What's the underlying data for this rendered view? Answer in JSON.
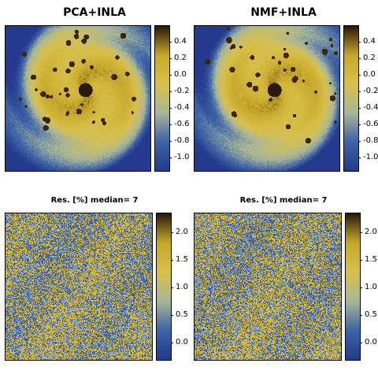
{
  "chart_data": [
    {
      "type": "heatmap",
      "title": "PCA+INLA",
      "colorbar": {
        "range": [
          -1.15,
          0.6
        ],
        "ticks": [
          "0.4",
          "0.2",
          "0.0",
          "-0.2",
          "-0.4",
          "-0.6",
          "-0.8",
          "-1.0"
        ]
      },
      "content": "spiral-field"
    },
    {
      "type": "heatmap",
      "title": "NMF+INLA",
      "colorbar": {
        "range": [
          -1.15,
          0.6
        ],
        "ticks": [
          "0.4",
          "0.2",
          "0.0",
          "-0.2",
          "-0.4",
          "-0.6",
          "-0.8",
          "-1.0"
        ]
      },
      "content": "spiral-field"
    },
    {
      "type": "heatmap",
      "title": "Res. [%]  median= 7",
      "colorbar": {
        "range": [
          -0.3,
          2.35
        ],
        "ticks": [
          "2.0",
          "1.5",
          "1.0",
          "0.5",
          "0.0"
        ]
      },
      "content": "residual-noise"
    },
    {
      "type": "heatmap",
      "title": "Res. [%]  median= 7",
      "colorbar": {
        "range": [
          -0.3,
          2.35
        ],
        "ticks": [
          "2.0",
          "1.5",
          "1.0",
          "0.5",
          "0.0"
        ]
      },
      "content": "residual-noise"
    }
  ],
  "colormap": [
    "#243a8c",
    "#3d64a8",
    "#a9b79a",
    "#d9c14c",
    "#c8a92a",
    "#2a1a0a"
  ]
}
